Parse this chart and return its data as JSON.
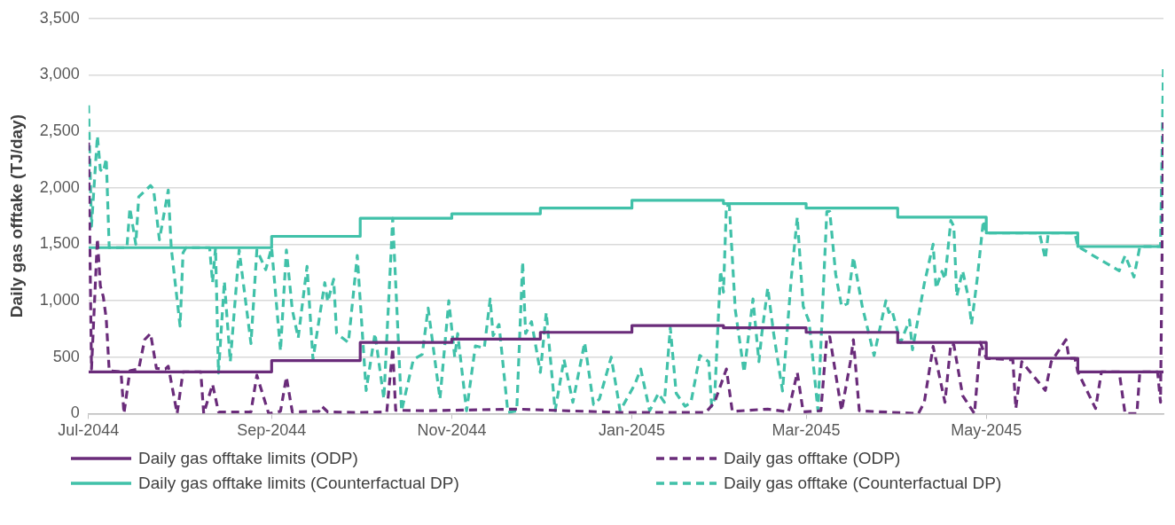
{
  "chart_data": {
    "type": "line",
    "ylabel": "Daily gas offtake (TJ/day)",
    "xlim": [
      "2044-07-01",
      "2045-06-30"
    ],
    "xticks": [
      {
        "value": "2044-07-01",
        "label": "Jul-2044"
      },
      {
        "value": "2044-09-01",
        "label": "Sep-2044"
      },
      {
        "value": "2044-11-01",
        "label": "Nov-2044"
      },
      {
        "value": "2045-01-01",
        "label": "Jan-2045"
      },
      {
        "value": "2045-03-01",
        "label": "Mar-2045"
      },
      {
        "value": "2045-05-01",
        "label": "May-2045"
      }
    ],
    "ylim": [
      0,
      3500
    ],
    "yticks": [
      0,
      500,
      {
        "value": 1000,
        "label": "1,000"
      },
      {
        "value": 1500,
        "label": "1,500"
      },
      {
        "value": 2000,
        "label": "2,000"
      },
      {
        "value": 2500,
        "label": "2,500"
      },
      {
        "value": 3000,
        "label": "3,000"
      },
      {
        "value": 3500,
        "label": "3,500"
      }
    ],
    "grid": "y",
    "legend": "bottom",
    "marker": "none",
    "series": [
      {
        "name": "Daily gas offtake limits (ODP)",
        "type": "step",
        "line_style": "solid",
        "color": "#6a2c7a",
        "x": [
          "2044-07-01",
          "2044-09-01",
          "2044-10-01",
          "2044-11-01",
          "2044-12-01",
          "2045-01-01",
          "2045-02-01",
          "2045-03-01",
          "2045-04-01",
          "2045-05-01",
          "2045-06-01",
          "2045-06-30"
        ],
        "values": [
          370,
          470,
          630,
          660,
          720,
          780,
          760,
          720,
          630,
          490,
          370,
          370
        ]
      },
      {
        "name": "Daily gas offtake (ODP)",
        "type": "line",
        "line_style": "dashed",
        "color": "#6a2c7a",
        "x": [
          "2044-07-01",
          "2044-07-02",
          "2044-07-04",
          "2044-07-05",
          "2044-07-06",
          "2044-07-07",
          "2044-07-08",
          "2044-07-12",
          "2044-07-13",
          "2044-07-15",
          "2044-07-18",
          "2044-07-20",
          "2044-07-22",
          "2044-07-24",
          "2044-07-27",
          "2044-07-28",
          "2044-07-31",
          "2044-08-02",
          "2044-08-08",
          "2044-08-09",
          "2044-08-12",
          "2044-08-14",
          "2044-08-25",
          "2044-08-27",
          "2044-08-31",
          "2044-09-04",
          "2044-09-06",
          "2044-09-08",
          "2044-09-17",
          "2044-09-18",
          "2044-09-20",
          "2044-09-29",
          "2044-10-10",
          "2044-10-12",
          "2044-10-13",
          "2044-10-23",
          "2044-11-23",
          "2044-12-28",
          "2045-01-26",
          "2045-01-29",
          "2045-02-02",
          "2045-02-04",
          "2045-02-16",
          "2045-02-23",
          "2045-02-26",
          "2045-02-28",
          "2045-03-06",
          "2045-03-08",
          "2045-03-09",
          "2045-03-13",
          "2045-03-16",
          "2045-03-17",
          "2045-03-19",
          "2045-04-08",
          "2045-04-10",
          "2045-04-13",
          "2045-04-17",
          "2045-04-19",
          "2045-04-20",
          "2045-04-23",
          "2045-04-27",
          "2045-04-29",
          "2045-05-01",
          "2045-05-10",
          "2045-05-11",
          "2045-05-13",
          "2045-05-21",
          "2045-05-23",
          "2045-05-28",
          "2045-05-29",
          "2045-05-31",
          "2045-06-01",
          "2045-06-07",
          "2045-06-09",
          "2045-06-15",
          "2045-06-17",
          "2045-06-21",
          "2045-06-22",
          "2045-06-28",
          "2045-06-29",
          "2045-06-30"
        ],
        "values": [
          2400,
          395,
          1550,
          1130,
          1035,
          840,
          380,
          370,
          0,
          380,
          395,
          655,
          710,
          400,
          395,
          420,
          0,
          370,
          370,
          0,
          260,
          15,
          15,
          340,
          0,
          20,
          325,
          15,
          20,
          65,
          15,
          10,
          15,
          580,
          30,
          25,
          40,
          10,
          10,
          100,
          395,
          20,
          40,
          15,
          365,
          15,
          25,
          680,
          680,
          25,
          460,
          655,
          25,
          0,
          100,
          595,
          100,
          620,
          610,
          160,
          0,
          630,
          490,
          475,
          45,
          460,
          205,
          460,
          655,
          490,
          490,
          370,
          45,
          370,
          370,
          0,
          0,
          370,
          370,
          100,
          2580
        ]
      },
      {
        "name": "Daily gas offtake limits (Counterfactual DP)",
        "type": "step",
        "line_style": "solid",
        "color": "#41c1a9",
        "x": [
          "2044-07-01",
          "2044-09-01",
          "2044-10-01",
          "2044-11-01",
          "2044-12-01",
          "2045-01-01",
          "2045-02-01",
          "2045-03-01",
          "2045-04-01",
          "2045-05-01",
          "2045-06-01",
          "2045-06-30"
        ],
        "values": [
          1470,
          1570,
          1730,
          1770,
          1820,
          1890,
          1860,
          1820,
          1740,
          1600,
          1480,
          1480
        ]
      },
      {
        "name": "Daily gas offtake (Counterfactual DP)",
        "type": "line",
        "line_style": "dashed",
        "color": "#41c1a9",
        "x": [
          "2044-07-01",
          "2044-07-02",
          "2044-07-04",
          "2044-07-05",
          "2044-07-06",
          "2044-07-07",
          "2044-07-08",
          "2044-07-14",
          "2044-07-15",
          "2044-07-17",
          "2044-07-18",
          "2044-07-22",
          "2044-07-23",
          "2044-07-25",
          "2044-07-28",
          "2044-07-29",
          "2044-08-01",
          "2044-08-02",
          "2044-08-03",
          "2044-08-11",
          "2044-08-12",
          "2044-08-13",
          "2044-08-14",
          "2044-08-16",
          "2044-08-18",
          "2044-08-21",
          "2044-08-25",
          "2044-08-27",
          "2044-08-30",
          "2044-09-01",
          "2044-09-04",
          "2044-09-06",
          "2044-09-08",
          "2044-09-10",
          "2044-09-13",
          "2044-09-15",
          "2044-09-19",
          "2044-09-20",
          "2044-09-22",
          "2044-09-23",
          "2044-09-27",
          "2044-09-30",
          "2044-10-03",
          "2044-10-06",
          "2044-10-09",
          "2044-10-12",
          "2044-10-15",
          "2044-10-19",
          "2044-10-22",
          "2044-10-24",
          "2044-10-28",
          "2044-10-31",
          "2044-11-02",
          "2044-11-03",
          "2044-11-06",
          "2044-11-09",
          "2044-11-12",
          "2044-11-14",
          "2044-11-15",
          "2044-11-17",
          "2044-11-20",
          "2044-11-23",
          "2044-11-25",
          "2044-11-26",
          "2044-11-28",
          "2044-12-01",
          "2044-12-03",
          "2044-12-06",
          "2044-12-09",
          "2044-12-12",
          "2044-12-16",
          "2044-12-19",
          "2044-12-21",
          "2044-12-25",
          "2044-12-28",
          "2045-01-02",
          "2045-01-04",
          "2045-01-07",
          "2045-01-10",
          "2045-01-12",
          "2045-01-14",
          "2045-01-16",
          "2045-01-19",
          "2045-01-21",
          "2045-01-24",
          "2045-01-27",
          "2045-01-28",
          "2045-01-29",
          "2045-01-31",
          "2045-02-01",
          "2045-02-02",
          "2045-02-03",
          "2045-02-05",
          "2045-02-08",
          "2045-02-11",
          "2045-02-13",
          "2045-02-14",
          "2045-02-16",
          "2045-02-18",
          "2045-02-21",
          "2045-02-24",
          "2045-02-26",
          "2045-02-28",
          "2045-03-02",
          "2045-03-05",
          "2045-03-08",
          "2045-03-09",
          "2045-03-11",
          "2045-03-13",
          "2045-03-15",
          "2045-03-17",
          "2045-03-20",
          "2045-03-24",
          "2045-03-28",
          "2045-03-29",
          "2045-03-30",
          "2045-04-02",
          "2045-04-05",
          "2045-04-06",
          "2045-04-10",
          "2045-04-13",
          "2045-04-14",
          "2045-04-16",
          "2045-04-17",
          "2045-04-19",
          "2045-04-20",
          "2045-04-21",
          "2045-04-23",
          "2045-04-25",
          "2045-04-26",
          "2045-04-28",
          "2045-04-30",
          "2045-05-01",
          "2045-05-19",
          "2045-05-21",
          "2045-05-22",
          "2045-05-31",
          "2045-06-01",
          "2045-06-15",
          "2045-06-17",
          "2045-06-20",
          "2045-06-22",
          "2045-06-29",
          "2045-06-30"
        ],
        "values": [
          2730,
          1660,
          2460,
          2160,
          2140,
          2260,
          1470,
          1470,
          1820,
          1500,
          1920,
          2020,
          1990,
          1540,
          1980,
          1470,
          775,
          1425,
          1470,
          1470,
          1160,
          1470,
          360,
          1170,
          460,
          1450,
          620,
          1450,
          1275,
          1470,
          555,
          1450,
          920,
          670,
          1305,
          480,
          1160,
          990,
          1190,
          710,
          630,
          1400,
          205,
          710,
          130,
          1730,
          25,
          480,
          525,
          935,
          130,
          1000,
          500,
          710,
          25,
          600,
          580,
          1015,
          690,
          790,
          10,
          25,
          1345,
          710,
          815,
          365,
          895,
          25,
          480,
          100,
          630,
          80,
          130,
          500,
          25,
          260,
          395,
          25,
          180,
          100,
          760,
          180,
          65,
          100,
          515,
          460,
          65,
          130,
          1265,
          1075,
          1845,
          1840,
          920,
          365,
          1015,
          460,
          710,
          1115,
          710,
          200,
          1210,
          1740,
          950,
          815,
          25,
          1790,
          1790,
          1235,
          950,
          975,
          1385,
          950,
          515,
          1000,
          895,
          920,
          630,
          830,
          565,
          1150,
          1500,
          1110,
          1260,
          1190,
          1710,
          1660,
          1040,
          1265,
          1020,
          790,
          1210,
          1710,
          1600,
          1600,
          1370,
          1600,
          1600,
          1480,
          1265,
          1400,
          1210,
          1480,
          1480,
          3090
        ]
      }
    ]
  }
}
